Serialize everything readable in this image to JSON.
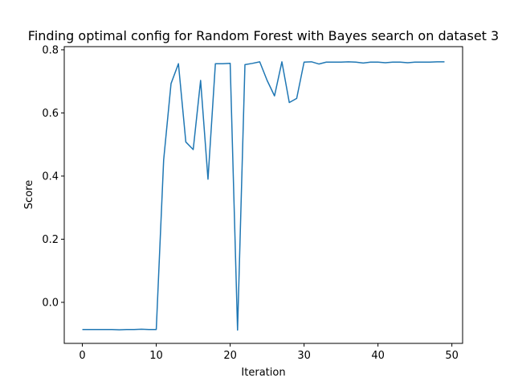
{
  "chart_data": {
    "type": "line",
    "title": "Finding optimal config for Random Forest with Bayes search on dataset 3",
    "xlabel": "Iteration",
    "ylabel": "Score",
    "xlim": [
      -2.45,
      51.45
    ],
    "ylim": [
      -0.13,
      0.81
    ],
    "xticks": [
      0,
      10,
      20,
      30,
      40,
      50
    ],
    "yticks": [
      -0.0,
      0.2,
      0.4,
      0.6,
      0.8
    ],
    "ytick_labels": [
      "0.0",
      "0.2",
      "0.4",
      "0.6",
      "0.8"
    ],
    "xtick_labels": [
      "0",
      "10",
      "20",
      "30",
      "40",
      "50"
    ],
    "grid": false,
    "legend": "none",
    "series": [
      {
        "color": "#1f77b4",
        "x": [
          0,
          1,
          2,
          3,
          4,
          5,
          6,
          7,
          8,
          9,
          10,
          11,
          12,
          13,
          14,
          15,
          16,
          17,
          18,
          19,
          20,
          21,
          22,
          23,
          24,
          25,
          26,
          27,
          28,
          29,
          30,
          31,
          32,
          33,
          34,
          35,
          36,
          37,
          38,
          39,
          40,
          41,
          42,
          43,
          44,
          45,
          46,
          47,
          48,
          49
        ],
        "y": [
          -0.086,
          -0.086,
          -0.086,
          -0.086,
          -0.086,
          -0.087,
          -0.086,
          -0.086,
          -0.085,
          -0.086,
          -0.086,
          0.451,
          0.693,
          0.756,
          0.508,
          0.484,
          0.703,
          0.39,
          0.756,
          0.756,
          0.757,
          -0.088,
          0.753,
          0.757,
          0.762,
          0.703,
          0.654,
          0.762,
          0.633,
          0.646,
          0.761,
          0.762,
          0.755,
          0.761,
          0.761,
          0.761,
          0.762,
          0.761,
          0.758,
          0.761,
          0.761,
          0.759,
          0.761,
          0.761,
          0.759,
          0.761,
          0.761,
          0.761,
          0.762,
          0.762
        ]
      }
    ]
  }
}
